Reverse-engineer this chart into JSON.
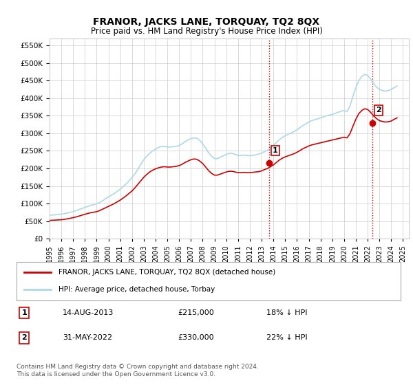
{
  "title": "FRANOR, JACKS LANE, TORQUAY, TQ2 8QX",
  "subtitle": "Price paid vs. HM Land Registry's House Price Index (HPI)",
  "ylabel_ticks": [
    "£0",
    "£50K",
    "£100K",
    "£150K",
    "£200K",
    "£250K",
    "£300K",
    "£350K",
    "£400K",
    "£450K",
    "£500K",
    "£550K"
  ],
  "ytick_values": [
    0,
    50000,
    100000,
    150000,
    200000,
    250000,
    300000,
    350000,
    400000,
    450000,
    500000,
    550000
  ],
  "ylim": [
    0,
    570000
  ],
  "xlim_start": 1995.0,
  "xlim_end": 2025.5,
  "xtick_years": [
    1995,
    1996,
    1997,
    1998,
    1999,
    2000,
    2001,
    2002,
    2003,
    2004,
    2005,
    2006,
    2007,
    2008,
    2009,
    2010,
    2011,
    2012,
    2013,
    2014,
    2015,
    2016,
    2017,
    2018,
    2019,
    2020,
    2021,
    2022,
    2023,
    2024,
    2025
  ],
  "sale1_x": 2013.617,
  "sale1_y": 215000,
  "sale1_label": "1",
  "sale1_date": "14-AUG-2013",
  "sale1_price": "£215,000",
  "sale1_hpi": "18% ↓ HPI",
  "sale2_x": 2022.417,
  "sale2_y": 330000,
  "sale2_label": "2",
  "sale2_date": "31-MAY-2022",
  "sale2_price": "£330,000",
  "sale2_hpi": "22% ↓ HPI",
  "hpi_color": "#add8e6",
  "price_color": "#cc0000",
  "vline_color": "#cc0000",
  "vline_style": ":",
  "background_color": "#ffffff",
  "grid_color": "#cccccc",
  "legend_label_price": "FRANOR, JACKS LANE, TORQUAY, TQ2 8QX (detached house)",
  "legend_label_hpi": "HPI: Average price, detached house, Torbay",
  "footer": "Contains HM Land Registry data © Crown copyright and database right 2024.\nThis data is licensed under the Open Government Licence v3.0.",
  "hpi_data_x": [
    1995.0,
    1995.25,
    1995.5,
    1995.75,
    1996.0,
    1996.25,
    1996.5,
    1996.75,
    1997.0,
    1997.25,
    1997.5,
    1997.75,
    1998.0,
    1998.25,
    1998.5,
    1998.75,
    1999.0,
    1999.25,
    1999.5,
    1999.75,
    2000.0,
    2000.25,
    2000.5,
    2000.75,
    2001.0,
    2001.25,
    2001.5,
    2001.75,
    2002.0,
    2002.25,
    2002.5,
    2002.75,
    2003.0,
    2003.25,
    2003.5,
    2003.75,
    2004.0,
    2004.25,
    2004.5,
    2004.75,
    2005.0,
    2005.25,
    2005.5,
    2005.75,
    2006.0,
    2006.25,
    2006.5,
    2006.75,
    2007.0,
    2007.25,
    2007.5,
    2007.75,
    2008.0,
    2008.25,
    2008.5,
    2008.75,
    2009.0,
    2009.25,
    2009.5,
    2009.75,
    2010.0,
    2010.25,
    2010.5,
    2010.75,
    2011.0,
    2011.25,
    2011.5,
    2011.75,
    2012.0,
    2012.25,
    2012.5,
    2012.75,
    2013.0,
    2013.25,
    2013.5,
    2013.75,
    2014.0,
    2014.25,
    2014.5,
    2014.75,
    2015.0,
    2015.25,
    2015.5,
    2015.75,
    2016.0,
    2016.25,
    2016.5,
    2016.75,
    2017.0,
    2017.25,
    2017.5,
    2017.75,
    2018.0,
    2018.25,
    2018.5,
    2018.75,
    2019.0,
    2019.25,
    2019.5,
    2019.75,
    2020.0,
    2020.25,
    2020.5,
    2020.75,
    2021.0,
    2021.25,
    2021.5,
    2021.75,
    2022.0,
    2022.25,
    2022.5,
    2022.75,
    2023.0,
    2023.25,
    2023.5,
    2023.75,
    2024.0,
    2024.25,
    2024.5
  ],
  "hpi_data_y": [
    67000,
    67500,
    68000,
    69000,
    70000,
    71500,
    73000,
    75000,
    77000,
    80000,
    83000,
    86000,
    89000,
    92000,
    95000,
    97000,
    99000,
    103000,
    108000,
    114000,
    119000,
    124000,
    129000,
    135000,
    141000,
    148000,
    156000,
    165000,
    174000,
    185000,
    198000,
    212000,
    225000,
    235000,
    243000,
    250000,
    255000,
    260000,
    263000,
    263000,
    261000,
    261000,
    262000,
    263000,
    265000,
    270000,
    276000,
    281000,
    285000,
    287000,
    286000,
    280000,
    270000,
    258000,
    245000,
    235000,
    228000,
    228000,
    232000,
    236000,
    240000,
    243000,
    243000,
    240000,
    237000,
    237000,
    238000,
    237000,
    236000,
    237000,
    239000,
    241000,
    244000,
    248000,
    252000,
    258000,
    265000,
    274000,
    282000,
    288000,
    293000,
    297000,
    301000,
    305000,
    310000,
    316000,
    322000,
    327000,
    332000,
    336000,
    339000,
    341000,
    344000,
    347000,
    350000,
    352000,
    354000,
    357000,
    360000,
    363000,
    365000,
    362000,
    378000,
    405000,
    430000,
    450000,
    462000,
    468000,
    465000,
    455000,
    442000,
    432000,
    425000,
    422000,
    420000,
    422000,
    425000,
    430000,
    435000
  ],
  "price_data_x": [
    1995.0,
    1995.25,
    1995.5,
    1995.75,
    1996.0,
    1996.25,
    1996.5,
    1996.75,
    1997.0,
    1997.25,
    1997.5,
    1997.75,
    1998.0,
    1998.25,
    1998.5,
    1998.75,
    1999.0,
    1999.25,
    1999.5,
    1999.75,
    2000.0,
    2000.25,
    2000.5,
    2000.75,
    2001.0,
    2001.25,
    2001.5,
    2001.75,
    2002.0,
    2002.25,
    2002.5,
    2002.75,
    2003.0,
    2003.25,
    2003.5,
    2003.75,
    2004.0,
    2004.25,
    2004.5,
    2004.75,
    2005.0,
    2005.25,
    2005.5,
    2005.75,
    2006.0,
    2006.25,
    2006.5,
    2006.75,
    2007.0,
    2007.25,
    2007.5,
    2007.75,
    2008.0,
    2008.25,
    2008.5,
    2008.75,
    2009.0,
    2009.25,
    2009.5,
    2009.75,
    2010.0,
    2010.25,
    2010.5,
    2010.75,
    2011.0,
    2011.25,
    2011.5,
    2011.75,
    2012.0,
    2012.25,
    2012.5,
    2012.75,
    2013.0,
    2013.25,
    2013.5,
    2013.75,
    2014.0,
    2014.25,
    2014.5,
    2014.75,
    2015.0,
    2015.25,
    2015.5,
    2015.75,
    2016.0,
    2016.25,
    2016.5,
    2016.75,
    2017.0,
    2017.25,
    2017.5,
    2017.75,
    2018.0,
    2018.25,
    2018.5,
    2018.75,
    2019.0,
    2019.25,
    2019.5,
    2019.75,
    2020.0,
    2020.25,
    2020.5,
    2020.75,
    2021.0,
    2021.25,
    2021.5,
    2021.75,
    2022.0,
    2022.25,
    2022.5,
    2022.75,
    2023.0,
    2023.25,
    2023.5,
    2023.75,
    2024.0,
    2024.25,
    2024.5
  ],
  "price_data_y": [
    52000,
    52500,
    53000,
    53500,
    54000,
    55000,
    56500,
    58000,
    60000,
    62000,
    64500,
    67000,
    69500,
    72000,
    74000,
    75500,
    77000,
    80000,
    84000,
    88000,
    92000,
    96000,
    100000,
    105000,
    110000,
    116000,
    122000,
    129000,
    136000,
    145000,
    155000,
    165000,
    175000,
    183000,
    190000,
    195000,
    199000,
    202000,
    204000,
    205000,
    204000,
    204000,
    205000,
    206000,
    208000,
    212000,
    217000,
    221000,
    225000,
    227000,
    226000,
    221000,
    214000,
    204000,
    194000,
    186000,
    181000,
    181000,
    184000,
    187000,
    190000,
    192000,
    192000,
    190000,
    188000,
    188000,
    189000,
    188000,
    188000,
    189000,
    190000,
    191000,
    193000,
    197000,
    200000,
    205000,
    210000,
    217000,
    224000,
    229000,
    233000,
    236000,
    239000,
    242000,
    246000,
    251000,
    256000,
    260000,
    264000,
    267000,
    269000,
    271000,
    273000,
    275000,
    277000,
    279000,
    281000,
    283000,
    285000,
    287000,
    289000,
    287000,
    299000,
    320000,
    340000,
    356000,
    365000,
    370000,
    368000,
    360000,
    350000,
    342000,
    336000,
    334000,
    332000,
    333000,
    335000,
    340000,
    344000
  ]
}
